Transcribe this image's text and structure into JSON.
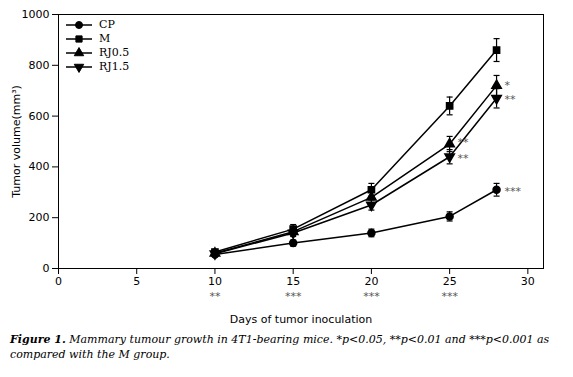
{
  "chart_data": {
    "type": "line",
    "xlabel": "Days of tumor inoculation",
    "ylabel": "Tumor volume(mm³)",
    "x": [
      10,
      15,
      20,
      25,
      28
    ],
    "series": [
      {
        "name": "CP",
        "color": "#000000",
        "marker": "circle",
        "values": [
          55,
          100,
          140,
          205,
          310
        ],
        "errors": [
          8,
          12,
          15,
          18,
          25
        ]
      },
      {
        "name": "M",
        "color": "#000000",
        "marker": "square",
        "values": [
          65,
          155,
          310,
          640,
          860
        ],
        "errors": [
          10,
          18,
          25,
          35,
          45
        ]
      },
      {
        "name": "RJ0.5",
        "color": "#000000",
        "marker": "triangle_up",
        "values": [
          60,
          145,
          280,
          490,
          720
        ],
        "errors": [
          8,
          15,
          22,
          30,
          40
        ]
      },
      {
        "name": "RJ1.5",
        "color": "#000000",
        "marker": "triangle_down",
        "values": [
          58,
          140,
          250,
          440,
          670
        ],
        "errors": [
          7,
          14,
          20,
          28,
          38
        ]
      }
    ],
    "xlim": [
      0,
      31
    ],
    "ylim": [
      0,
      1000
    ],
    "xticks": [
      0,
      5,
      10,
      15,
      20,
      25,
      30
    ],
    "yticks": [
      0,
      200,
      400,
      600,
      800,
      1000
    ],
    "legend": "upper left",
    "annotations": [
      {
        "text": "**",
        "x": 10
      },
      {
        "text": "***",
        "x": 15
      },
      {
        "text": "***",
        "x": 20
      },
      {
        "text": "***",
        "x": 25
      },
      {
        "text": "*",
        "x": 28.5,
        "y": 720
      },
      {
        "text": "**",
        "x": 28.5,
        "y": 665
      },
      {
        "text": "***",
        "x": 28.5,
        "y": 305
      },
      {
        "text": "**",
        "x": 25.5,
        "y": 495
      },
      {
        "text": "**",
        "x": 25.5,
        "y": 435
      }
    ],
    "caption_title": "Figure 1.",
    "caption": "Mammary tumour growth in 4T1-bearing mice. *p<0.05, **p<0.01 and ***p<0.001 as compared with the M group."
  }
}
